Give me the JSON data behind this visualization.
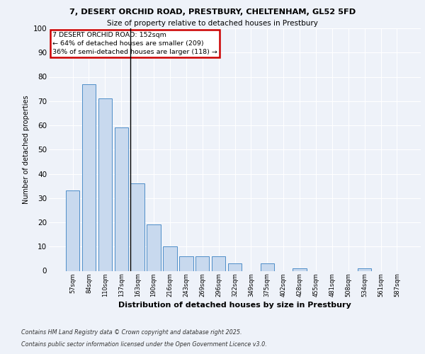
{
  "title1": "7, DESERT ORCHID ROAD, PRESTBURY, CHELTENHAM, GL52 5FD",
  "title2": "Size of property relative to detached houses in Prestbury",
  "xlabel": "Distribution of detached houses by size in Prestbury",
  "ylabel": "Number of detached properties",
  "categories": [
    "57sqm",
    "84sqm",
    "110sqm",
    "137sqm",
    "163sqm",
    "190sqm",
    "216sqm",
    "243sqm",
    "269sqm",
    "296sqm",
    "322sqm",
    "349sqm",
    "375sqm",
    "402sqm",
    "428sqm",
    "455sqm",
    "481sqm",
    "508sqm",
    "534sqm",
    "561sqm",
    "587sqm"
  ],
  "values": [
    33,
    77,
    71,
    59,
    36,
    19,
    10,
    6,
    6,
    6,
    3,
    0,
    3,
    0,
    1,
    0,
    0,
    0,
    1,
    0,
    0
  ],
  "bar_color": "#c8d9ee",
  "bar_edge_color": "#4e8ec8",
  "ylim": [
    0,
    100
  ],
  "yticks": [
    0,
    10,
    20,
    30,
    40,
    50,
    60,
    70,
    80,
    90,
    100
  ],
  "annotation_text": "7 DESERT ORCHID ROAD: 152sqm\n← 64% of detached houses are smaller (209)\n36% of semi-detached houses are larger (118) →",
  "vline_x_index": 3.56,
  "annotation_box_color": "#cc0000",
  "bg_color": "#eef2f9",
  "grid_color": "#ffffff",
  "footer1": "Contains HM Land Registry data © Crown copyright and database right 2025.",
  "footer2": "Contains public sector information licensed under the Open Government Licence v3.0."
}
